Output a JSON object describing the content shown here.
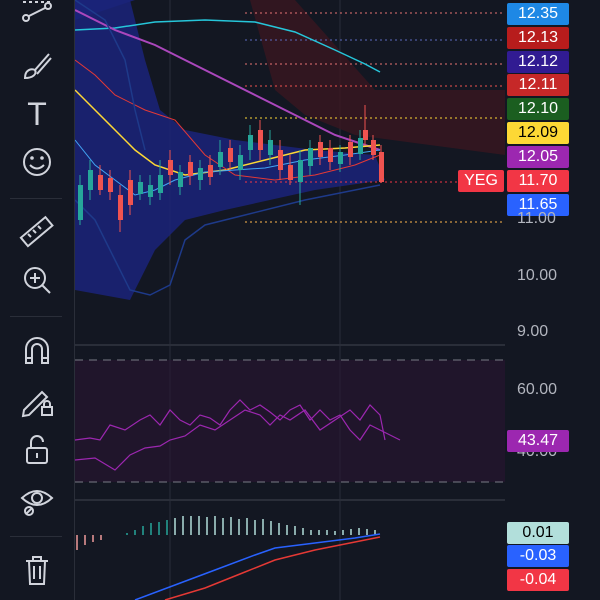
{
  "toolbar": {
    "tools": [
      {
        "name": "trend-lines-icon"
      },
      {
        "name": "brush-icon"
      },
      {
        "name": "text-icon"
      },
      {
        "name": "emoji-icon"
      },
      {
        "name": "ruler-icon"
      },
      {
        "name": "zoom-in-icon"
      },
      {
        "name": "magnet-icon"
      },
      {
        "name": "lock-drawing-icon"
      },
      {
        "name": "unlock-icon"
      },
      {
        "name": "eye-icon"
      },
      {
        "name": "trash-icon"
      }
    ],
    "text_tool_glyph": "T"
  },
  "symbol": "YEG",
  "price_labels": [
    {
      "value": "12.35",
      "color": "#1e88e5"
    },
    {
      "value": "12.13",
      "color": "#b71c1c"
    },
    {
      "value": "12.12",
      "color": "#311b92"
    },
    {
      "value": "12.11",
      "color": "#c62828"
    },
    {
      "value": "12.10",
      "color": "#1b5e20"
    },
    {
      "value": "12.09",
      "color": "#fdd835"
    },
    {
      "value": "12.05",
      "color": "#9c27b0"
    },
    {
      "value": "11.70",
      "color": "#f23645"
    },
    {
      "value": "11.65",
      "color": "#2962ff"
    }
  ],
  "price_axis": [
    "11.00",
    "10.00",
    "9.00"
  ],
  "rsi": {
    "axis": [
      "60.00",
      "40.00"
    ],
    "value": "43.47",
    "color": "#9c27b0"
  },
  "macd": {
    "labels": [
      {
        "value": "0.01",
        "color": "#b2dfdb"
      },
      {
        "value": "-0.03",
        "color": "#2962ff"
      },
      {
        "value": "-0.04",
        "color": "#f23645"
      }
    ]
  }
}
